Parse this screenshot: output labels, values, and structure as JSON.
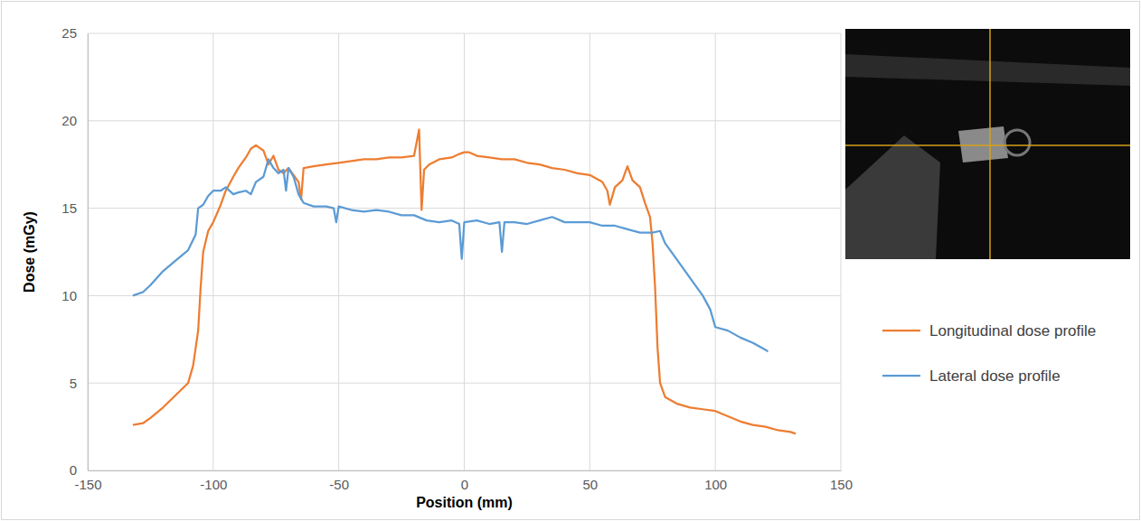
{
  "chart_data": {
    "type": "line",
    "x_label": "Position (mm)",
    "y_label": "Dose (mGy)",
    "xlim": [
      -150,
      150
    ],
    "xticks": [
      -150,
      -100,
      -50,
      0,
      50,
      100,
      150
    ],
    "ylim": [
      0,
      25
    ],
    "yticks": [
      0,
      5,
      10,
      15,
      20,
      25
    ],
    "grid": true,
    "legend": "right",
    "series": [
      {
        "name": "Longitudinal dose profile",
        "color": "#ed7d31",
        "x": [
          -132,
          -128,
          -125,
          -120,
          -115,
          -110,
          -108,
          -106,
          -105,
          -104,
          -102,
          -100,
          -97,
          -95,
          -92,
          -90,
          -87,
          -85,
          -83,
          -80,
          -78,
          -76,
          -74,
          -72,
          -70,
          -68,
          -66,
          -65,
          -64,
          -60,
          -55,
          -50,
          -45,
          -40,
          -35,
          -30,
          -25,
          -20,
          -18,
          -17,
          -16,
          -14,
          -10,
          -5,
          -2,
          0,
          2,
          5,
          10,
          15,
          20,
          25,
          30,
          35,
          40,
          45,
          50,
          55,
          57,
          58,
          60,
          63,
          65,
          67,
          70,
          72,
          74,
          75,
          76,
          77,
          78,
          80,
          85,
          90,
          95,
          100,
          105,
          110,
          115,
          120,
          125,
          130,
          132
        ],
        "values": [
          2.6,
          2.7,
          3.0,
          3.6,
          4.3,
          5.0,
          6.0,
          8.0,
          10.5,
          12.5,
          13.7,
          14.2,
          15.2,
          16.0,
          16.8,
          17.3,
          17.9,
          18.4,
          18.6,
          18.3,
          17.5,
          18.0,
          17.2,
          17.0,
          17.3,
          16.9,
          16.5,
          15.5,
          17.3,
          17.4,
          17.5,
          17.6,
          17.7,
          17.8,
          17.8,
          17.9,
          17.9,
          18.0,
          19.5,
          14.9,
          17.2,
          17.5,
          17.8,
          17.9,
          18.1,
          18.2,
          18.2,
          18.0,
          17.9,
          17.8,
          17.8,
          17.6,
          17.5,
          17.3,
          17.2,
          17.0,
          16.9,
          16.5,
          16.0,
          15.2,
          16.2,
          16.6,
          17.4,
          16.6,
          16.2,
          15.3,
          14.5,
          13.0,
          10.5,
          7.0,
          5.0,
          4.2,
          3.8,
          3.6,
          3.5,
          3.4,
          3.1,
          2.8,
          2.6,
          2.5,
          2.3,
          2.2,
          2.1
        ]
      },
      {
        "name": "Lateral dose profile",
        "color": "#5b9bd5",
        "x": [
          -132,
          -128,
          -125,
          -120,
          -115,
          -110,
          -107,
          -106,
          -104,
          -102,
          -100,
          -97,
          -95,
          -92,
          -90,
          -87,
          -85,
          -83,
          -80,
          -78,
          -76,
          -74,
          -72,
          -71,
          -70,
          -68,
          -66,
          -64,
          -60,
          -55,
          -52,
          -51,
          -50,
          -45,
          -40,
          -35,
          -30,
          -25,
          -20,
          -15,
          -10,
          -5,
          -2,
          -1,
          0,
          5,
          10,
          14,
          15,
          16,
          20,
          25,
          30,
          35,
          40,
          45,
          50,
          55,
          60,
          65,
          70,
          75,
          78,
          80,
          85,
          90,
          95,
          98,
          100,
          105,
          110,
          115,
          120,
          121
        ],
        "values": [
          10.0,
          10.2,
          10.6,
          11.4,
          12.0,
          12.6,
          13.5,
          15.0,
          15.2,
          15.7,
          16.0,
          16.0,
          16.2,
          15.8,
          15.9,
          16.0,
          15.8,
          16.5,
          16.8,
          17.8,
          17.3,
          17.0,
          17.2,
          16.0,
          17.3,
          16.8,
          15.8,
          15.3,
          15.1,
          15.1,
          15.0,
          14.2,
          15.1,
          14.9,
          14.8,
          14.9,
          14.8,
          14.6,
          14.6,
          14.3,
          14.2,
          14.3,
          14.1,
          12.1,
          14.2,
          14.3,
          14.1,
          14.2,
          12.5,
          14.2,
          14.2,
          14.1,
          14.3,
          14.5,
          14.2,
          14.2,
          14.2,
          14.0,
          14.0,
          13.8,
          13.6,
          13.6,
          13.7,
          13.0,
          12.0,
          11.0,
          10.0,
          9.2,
          8.2,
          8.0,
          7.6,
          7.3,
          6.9,
          6.8
        ]
      }
    ]
  }
}
